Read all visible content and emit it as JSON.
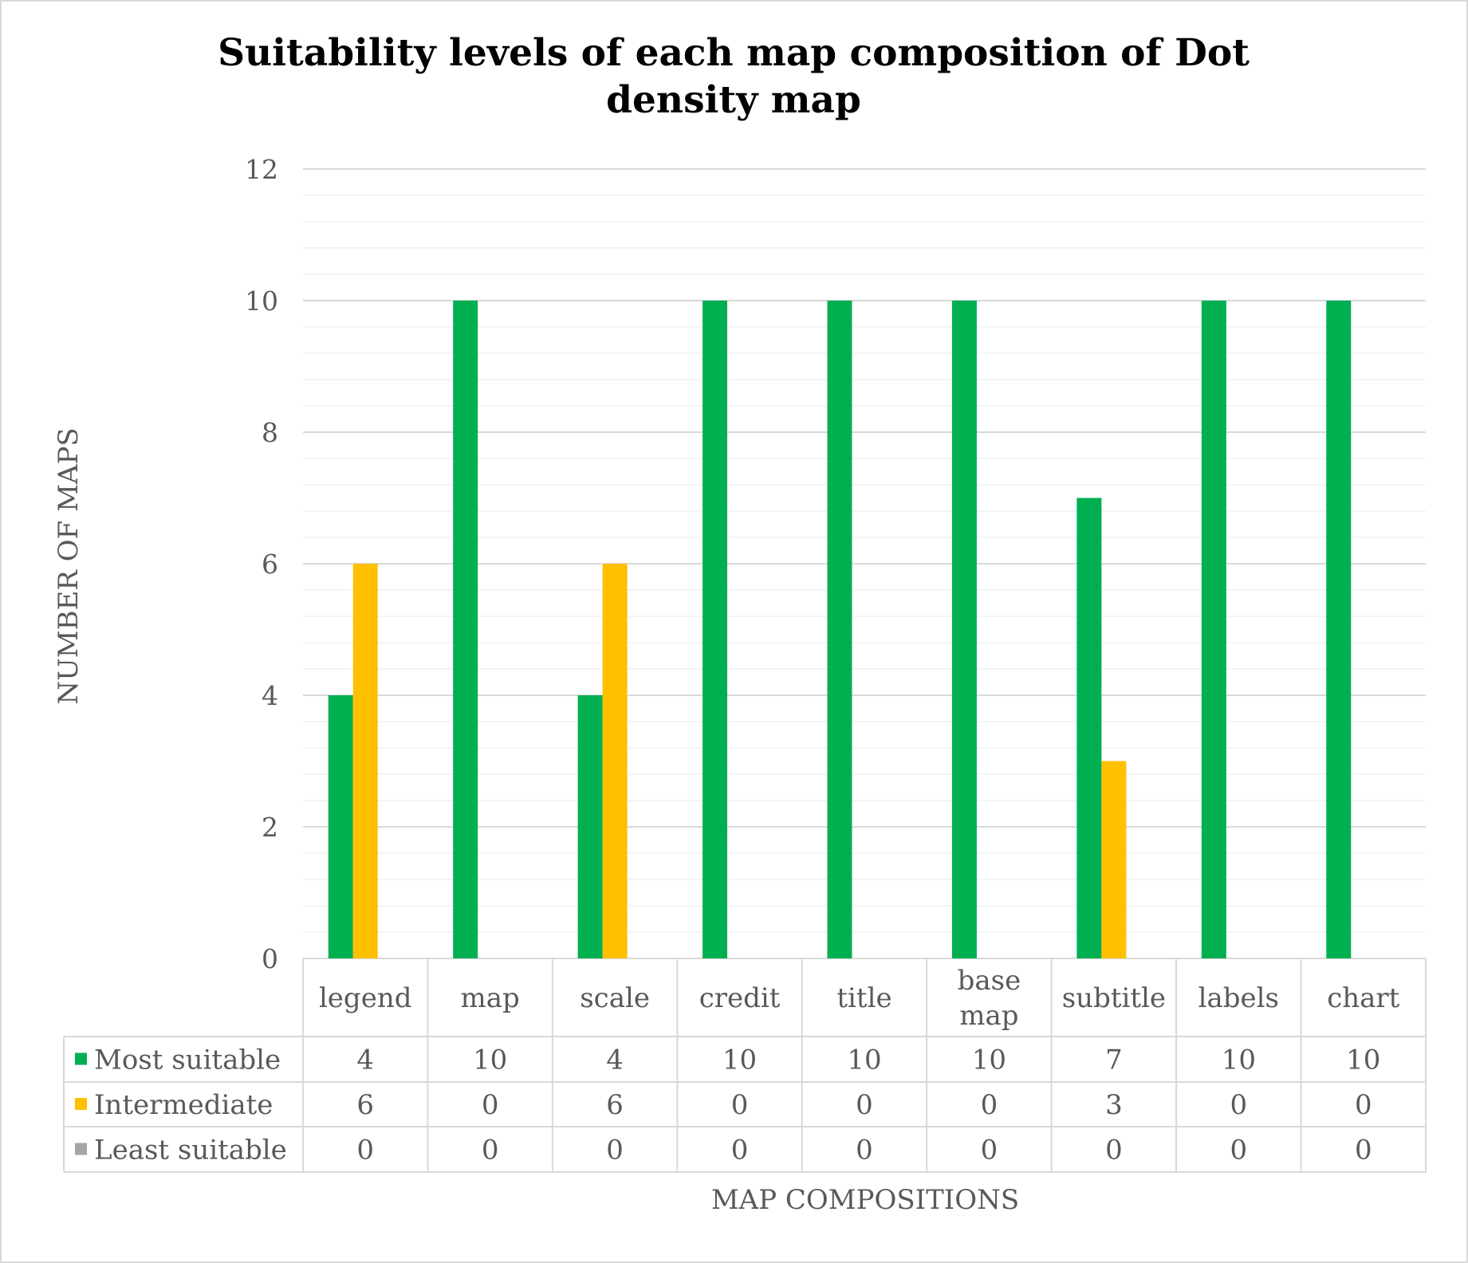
{
  "chart_data": {
    "type": "bar",
    "title_line1": "Suitability levels of each map composition of Dot",
    "title_line2": "density map",
    "xlabel": "MAP COMPOSITIONS",
    "ylabel": "NUMBER OF MAPS",
    "ylim": [
      0,
      12
    ],
    "yticks": [
      "0",
      "2",
      "4",
      "6",
      "8",
      "10",
      "12"
    ],
    "grid": true,
    "legend_position": "data-table",
    "categories": [
      [
        "legend"
      ],
      [
        "map"
      ],
      [
        "scale"
      ],
      [
        "credit"
      ],
      [
        "title"
      ],
      [
        "base",
        "map"
      ],
      [
        "subtitle"
      ],
      [
        "labels"
      ],
      [
        "chart"
      ]
    ],
    "series": [
      {
        "name": "Most suitable",
        "color": "#00B050",
        "values": [
          4,
          10,
          4,
          10,
          10,
          10,
          7,
          10,
          10
        ]
      },
      {
        "name": "Intermediate",
        "color": "#FFC000",
        "values": [
          6,
          0,
          6,
          0,
          0,
          0,
          3,
          0,
          0
        ]
      },
      {
        "name": "Least suitable",
        "color": "#A5A5A5",
        "values": [
          0,
          0,
          0,
          0,
          0,
          0,
          0,
          0,
          0
        ]
      }
    ]
  }
}
